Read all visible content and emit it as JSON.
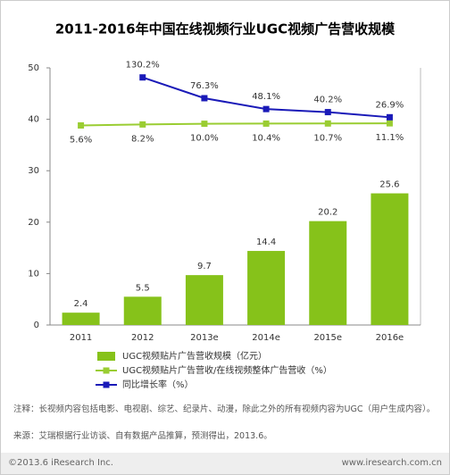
{
  "chart_data": {
    "type": "bar",
    "title": "2011-2016年中国在线视频行业UGC视频广告营收规模",
    "categories": [
      "2011",
      "2012",
      "2013e",
      "2014e",
      "2015e",
      "2016e"
    ],
    "ylim": [
      0,
      50
    ],
    "yticks": [
      0,
      10,
      20,
      30,
      40,
      50
    ],
    "y2lim": [
      -512,
      155
    ],
    "series": [
      {
        "name": "UGC视频贴片广告营收规模（亿元）",
        "type": "bar",
        "color": "#86c21a",
        "values": [
          2.4,
          5.5,
          9.7,
          14.4,
          20.2,
          25.6
        ]
      },
      {
        "name": "UGC视频贴片广告营收/在线视频整体广告营收（%）",
        "type": "line",
        "axis": "y2",
        "color": "#9acd32",
        "values": [
          5.6,
          8.2,
          10.0,
          10.4,
          10.7,
          11.1
        ],
        "value_labels": [
          "5.6%",
          "8.2%",
          "10.0%",
          "10.4%",
          "10.7%",
          "11.1%"
        ]
      },
      {
        "name": "同比增长率（%）",
        "type": "line",
        "axis": "y2",
        "color": "#1a1ab8",
        "values": [
          null,
          130.2,
          76.3,
          48.1,
          40.2,
          26.9
        ],
        "value_labels": [
          null,
          "130.2%",
          "76.3%",
          "48.1%",
          "40.2%",
          "26.9%"
        ]
      }
    ]
  },
  "notes": [
    "注释：长视频内容包括电影、电视剧、综艺、纪录片、动漫，除此之外的所有视频内容为UGC（用户生成内容）。",
    "来源：艾瑞根据行业访谈、自有数据产品推算，预测得出，2013.6。"
  ],
  "footer": {
    "copyright": "©2013.6 iResearch Inc.",
    "url": "www.iresearch.com.cn"
  }
}
